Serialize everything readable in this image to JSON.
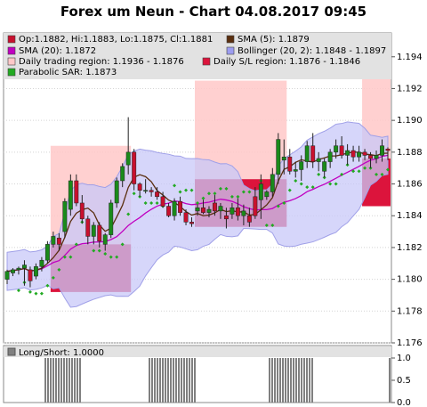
{
  "chart_data": {
    "type": "candlestick",
    "title": "Forex um Neun - Chart 04.08.2017 09:45",
    "y_axis": {
      "ticks": [
        "1.194",
        "1.192",
        "1.190",
        "1.188",
        "1.186",
        "1.184",
        "1.182",
        "1.180",
        "1.178",
        "1.176"
      ],
      "ylim": [
        1.176,
        1.1955
      ]
    },
    "legend": [
      {
        "label": "Op:1.1882, Hi:1.1883, Lo:1.1875, Cl:1.1881",
        "color": "#c8102e"
      },
      {
        "label": "SMA (5): 1.1879",
        "color": "#5a2e0e"
      },
      {
        "label": "SMA (20): 1.1872",
        "color": "#c000c0"
      },
      {
        "label": "Bollinger (20, 2): 1.1848 - 1.1897",
        "color": "#9d9df0"
      },
      {
        "label": "Daily trading region: 1.1936 - 1.1876",
        "color": "#ffc8c8"
      },
      {
        "label": "Daily S/L region: 1.1876 - 1.1846",
        "color": "#dc143c"
      },
      {
        "label": "Parabolic SAR: 1.1873",
        "color": "#22aa22"
      }
    ],
    "candles": [
      [
        1.18,
        1.1806,
        1.1797,
        1.1805
      ],
      [
        1.1804,
        1.1807,
        1.1802,
        1.1806
      ],
      [
        1.1806,
        1.1808,
        1.1803,
        1.1807
      ],
      [
        1.1807,
        1.1812,
        1.1796,
        1.1809
      ],
      [
        1.1806,
        1.1808,
        1.1795,
        1.1799
      ],
      [
        1.1802,
        1.181,
        1.18,
        1.1808
      ],
      [
        1.1808,
        1.1814,
        1.1805,
        1.1812
      ],
      [
        1.1812,
        1.1824,
        1.181,
        1.1822
      ],
      [
        1.1822,
        1.183,
        1.182,
        1.1827
      ],
      [
        1.1826,
        1.1829,
        1.1818,
        1.1822
      ],
      [
        1.183,
        1.1851,
        1.1826,
        1.1849
      ],
      [
        1.1844,
        1.1866,
        1.184,
        1.1862
      ],
      [
        1.1862,
        1.1866,
        1.1846,
        1.1848
      ],
      [
        1.1848,
        1.1853,
        1.1835,
        1.1838
      ],
      [
        1.1838,
        1.184,
        1.1822,
        1.1827
      ],
      [
        1.1827,
        1.1836,
        1.1822,
        1.1834
      ],
      [
        1.1834,
        1.1836,
        1.182,
        1.1824
      ],
      [
        1.1822,
        1.1829,
        1.1818,
        1.1828
      ],
      [
        1.1828,
        1.185,
        1.1826,
        1.1848
      ],
      [
        1.1848,
        1.1864,
        1.1845,
        1.1862
      ],
      [
        1.1862,
        1.1873,
        1.1858,
        1.1871
      ],
      [
        1.1872,
        1.1902,
        1.1866,
        1.188
      ],
      [
        1.188,
        1.1882,
        1.1856,
        1.186
      ],
      [
        1.186,
        1.1861,
        1.1852,
        1.1856
      ],
      [
        1.1856,
        1.1863,
        1.1854,
        1.1856
      ],
      [
        1.1856,
        1.1858,
        1.1852,
        1.1855
      ],
      [
        1.1855,
        1.1858,
        1.185,
        1.1852
      ],
      [
        1.1852,
        1.1855,
        1.1845,
        1.1846
      ],
      [
        1.1846,
        1.1848,
        1.1839,
        1.184
      ],
      [
        1.184,
        1.1851,
        1.1837,
        1.1849
      ],
      [
        1.1849,
        1.1852,
        1.184,
        1.1842
      ],
      [
        1.1842,
        1.1844,
        1.1834,
        1.1836
      ],
      [
        1.1836,
        1.1839,
        1.1833,
        1.1835
      ],
      [
        1.1843,
        1.1847,
        1.184,
        1.1845
      ],
      [
        1.1845,
        1.185,
        1.1841,
        1.1842
      ],
      [
        1.1842,
        1.1846,
        1.1839,
        1.1844
      ],
      [
        1.1848,
        1.1853,
        1.184,
        1.1843
      ],
      [
        1.1843,
        1.1848,
        1.1838,
        1.1846
      ],
      [
        1.184,
        1.1845,
        1.1832,
        1.1838
      ],
      [
        1.1841,
        1.1848,
        1.1838,
        1.1845
      ],
      [
        1.1845,
        1.1851,
        1.1837,
        1.184
      ],
      [
        1.184,
        1.1847,
        1.1834,
        1.1843
      ],
      [
        1.184,
        1.1845,
        1.1833,
        1.1836
      ],
      [
        1.1852,
        1.1858,
        1.1838,
        1.184
      ],
      [
        1.185,
        1.1866,
        1.1838,
        1.186
      ],
      [
        1.1852,
        1.1856,
        1.185,
        1.1855
      ],
      [
        1.1855,
        1.187,
        1.1852,
        1.1866
      ],
      [
        1.1866,
        1.1892,
        1.186,
        1.1888
      ],
      [
        1.1875,
        1.1888,
        1.1866,
        1.1877
      ],
      [
        1.1877,
        1.1882,
        1.1866,
        1.1868
      ],
      [
        1.1868,
        1.1874,
        1.1864,
        1.1869
      ],
      [
        1.1869,
        1.1878,
        1.1862,
        1.1874
      ],
      [
        1.1874,
        1.1887,
        1.187,
        1.1884
      ],
      [
        1.1884,
        1.1892,
        1.187,
        1.1874
      ],
      [
        1.1874,
        1.188,
        1.1868,
        1.1876
      ],
      [
        1.1868,
        1.1876,
        1.1864,
        1.1874
      ],
      [
        1.1874,
        1.1882,
        1.187,
        1.188
      ],
      [
        1.188,
        1.1888,
        1.1876,
        1.1884
      ],
      [
        1.1884,
        1.189,
        1.1876,
        1.1878
      ],
      [
        1.1878,
        1.1885,
        1.1872,
        1.1881
      ],
      [
        1.1881,
        1.1884,
        1.1874,
        1.1877
      ],
      [
        1.1877,
        1.1884,
        1.1874,
        1.188
      ],
      [
        1.188,
        1.1882,
        1.1875,
        1.1878
      ],
      [
        1.1878,
        1.188,
        1.187,
        1.1876
      ],
      [
        1.1876,
        1.1881,
        1.1873,
        1.1878
      ],
      [
        1.1878,
        1.1888,
        1.1874,
        1.1884
      ],
      [
        1.1882,
        1.1883,
        1.1875,
        1.1881
      ]
    ],
    "daily_trading_regions": [
      {
        "from_candle": 8,
        "to_candle": 21,
        "high": 1.1884,
        "low": 1.1822
      },
      {
        "from_candle": 33,
        "to_candle": 48,
        "high": 1.1925,
        "low": 1.1863
      },
      {
        "from_candle": 62,
        "to_candle": 66,
        "high": 1.1936,
        "low": 1.1876
      }
    ],
    "daily_sl_regions": [
      {
        "from_candle": 8,
        "to_candle": 21,
        "high": 1.1822,
        "low": 1.1792
      },
      {
        "from_candle": 33,
        "to_candle": 48,
        "high": 1.1863,
        "low": 1.1833
      },
      {
        "from_candle": 62,
        "to_candle": 66,
        "high": 1.1876,
        "low": 1.1846
      }
    ],
    "long_short_panel": {
      "label": "Long/Short: 1.0000",
      "ticks": [
        "1.0",
        "0.5",
        "0.0"
      ],
      "values": [
        0,
        0,
        0,
        0,
        0,
        0,
        0,
        0,
        0,
        0,
        0,
        0,
        0,
        0,
        0,
        1,
        1,
        1,
        1,
        1,
        1,
        1,
        1,
        1,
        1,
        1,
        1,
        1,
        1,
        0,
        0,
        0,
        0,
        0,
        0,
        0,
        0,
        0,
        0,
        0,
        0,
        0,
        0,
        0,
        0,
        0,
        0,
        0,
        0,
        0,
        0,
        0,
        0,
        0,
        1,
        1,
        1,
        1,
        1,
        1,
        1,
        1,
        1,
        1,
        1,
        1,
        1,
        1,
        1,
        1,
        1,
        1,
        0,
        0,
        0,
        0,
        0,
        0,
        0,
        0,
        0,
        0,
        0,
        0,
        0,
        0,
        0,
        0,
        0,
        0,
        0,
        0,
        0,
        0,
        0,
        0,
        0,
        0,
        0,
        1,
        1,
        1,
        1,
        1,
        1,
        1,
        1,
        1,
        1,
        1,
        1,
        1,
        1,
        1,
        1,
        1,
        0,
        0,
        0,
        0,
        0,
        0,
        0,
        0,
        0,
        0,
        0,
        0,
        0,
        0,
        0,
        0,
        0,
        0,
        0,
        0,
        0,
        0,
        0,
        0,
        0,
        0,
        0,
        0,
        1
      ]
    }
  }
}
